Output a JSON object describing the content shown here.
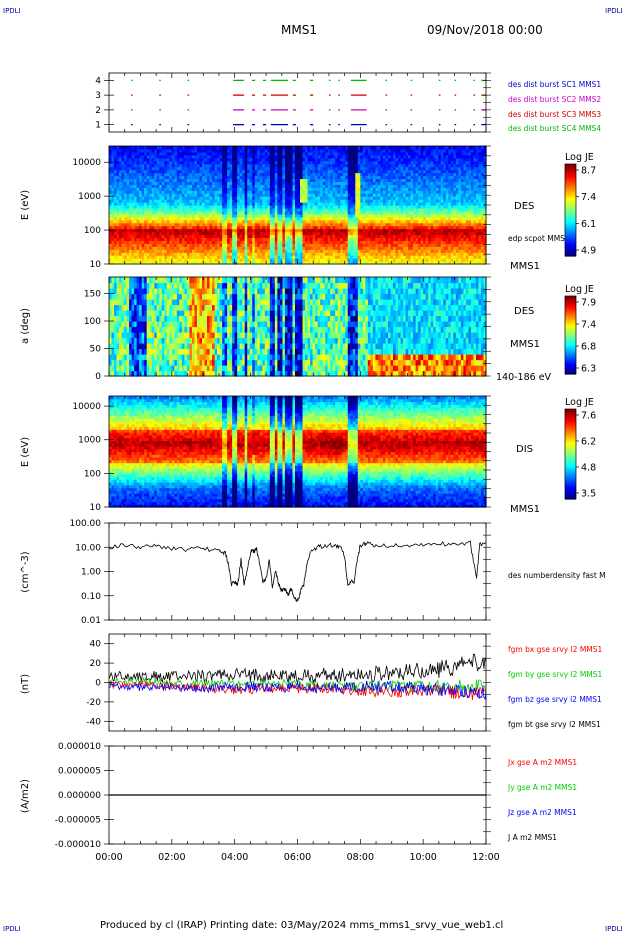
{
  "header": {
    "corner_left_top": "IPDLI",
    "corner_right_top": "IPDLI",
    "corner_left_bottom": "IPDLI",
    "corner_right_bottom": "IPDLI",
    "title": "MMS1",
    "date": "09/Nov/2018 00:00",
    "footer": "Produced by cl (IRAP)   Printing date: 03/May/2024   mms_mms1_srvy_vue_web1.cl"
  },
  "colors": {
    "sc1": "#0000cc",
    "sc2": "#cc00cc",
    "sc3": "#cc0000",
    "sc4": "#00bb00",
    "bx": "#ff0000",
    "by": "#00cc00",
    "bz": "#0000ff",
    "bt": "#000000"
  },
  "chart_data": [
    {
      "id": "burst",
      "type": "scatter",
      "x_ticks": [
        "00:00",
        "02:00",
        "04:00",
        "06:00",
        "08:00",
        "10:00",
        "12:00"
      ],
      "y_ticks": [
        "1",
        "2",
        "3",
        "4"
      ],
      "ylim": [
        0.5,
        4.5
      ],
      "legend": [
        "des dist burst SC1 MMS1",
        "des dist burst SC2 MMS2",
        "des dist burst SC3 MMS3",
        "des dist burst SC4 MMS4"
      ],
      "series": [
        {
          "level": 1,
          "color": "sc1",
          "segments": [
            [
              0.7,
              0.75
            ],
            [
              1.6,
              1.65
            ],
            [
              2.5,
              2.55
            ],
            [
              3.95,
              4.3
            ],
            [
              4.55,
              4.65
            ],
            [
              4.9,
              5.0
            ],
            [
              5.15,
              5.7
            ],
            [
              5.85,
              5.95
            ],
            [
              6.4,
              6.5
            ],
            [
              7.0,
              7.05
            ],
            [
              7.3,
              7.35
            ],
            [
              7.7,
              8.2
            ],
            [
              8.8,
              8.85
            ],
            [
              9.6,
              9.65
            ],
            [
              10.5,
              10.55
            ],
            [
              11.0,
              11.05
            ],
            [
              11.6,
              11.65
            ],
            [
              11.85,
              12.0
            ]
          ]
        },
        {
          "level": 2,
          "color": "sc2",
          "segments": [
            [
              0.7,
              0.75
            ],
            [
              1.6,
              1.65
            ],
            [
              2.5,
              2.55
            ],
            [
              3.95,
              4.3
            ],
            [
              4.55,
              4.65
            ],
            [
              4.9,
              5.0
            ],
            [
              5.15,
              5.7
            ],
            [
              5.85,
              5.95
            ],
            [
              6.4,
              6.5
            ],
            [
              7.0,
              7.05
            ],
            [
              7.3,
              7.35
            ],
            [
              7.7,
              8.2
            ],
            [
              8.8,
              8.85
            ],
            [
              9.6,
              9.65
            ],
            [
              10.5,
              10.55
            ],
            [
              11.0,
              11.05
            ],
            [
              11.6,
              11.65
            ],
            [
              11.85,
              12.0
            ]
          ]
        },
        {
          "level": 3,
          "color": "sc3",
          "segments": [
            [
              0.7,
              0.75
            ],
            [
              1.6,
              1.65
            ],
            [
              2.5,
              2.55
            ],
            [
              3.95,
              4.3
            ],
            [
              4.55,
              4.65
            ],
            [
              4.9,
              5.0
            ],
            [
              5.15,
              5.7
            ],
            [
              5.85,
              5.95
            ],
            [
              6.4,
              6.5
            ],
            [
              7.0,
              7.05
            ],
            [
              7.3,
              7.35
            ],
            [
              7.7,
              8.2
            ],
            [
              8.8,
              8.85
            ],
            [
              9.6,
              9.65
            ],
            [
              10.5,
              10.55
            ],
            [
              11.0,
              11.05
            ],
            [
              11.6,
              11.65
            ],
            [
              11.85,
              12.0
            ]
          ]
        },
        {
          "level": 4,
          "color": "sc4",
          "segments": [
            [
              0.7,
              0.75
            ],
            [
              1.6,
              1.65
            ],
            [
              2.5,
              2.55
            ],
            [
              3.95,
              4.3
            ],
            [
              4.55,
              4.65
            ],
            [
              4.9,
              5.0
            ],
            [
              5.15,
              5.7
            ],
            [
              5.85,
              5.95
            ],
            [
              6.4,
              6.5
            ],
            [
              7.0,
              7.05
            ],
            [
              7.3,
              7.35
            ],
            [
              7.7,
              8.2
            ],
            [
              8.8,
              8.85
            ],
            [
              9.6,
              9.65
            ],
            [
              10.5,
              10.55
            ],
            [
              11.0,
              11.05
            ],
            [
              11.6,
              11.65
            ],
            [
              11.85,
              12.0
            ]
          ]
        }
      ]
    },
    {
      "id": "des_energy",
      "type": "heatmap",
      "ylabel": "E (eV)",
      "yscale": "log",
      "ylim": [
        10,
        30000
      ],
      "y_ticks": [
        "10",
        "100",
        "1000",
        "10000"
      ],
      "x_ticks": [
        "00:00",
        "02:00",
        "04:00",
        "06:00",
        "08:00",
        "10:00",
        "12:00"
      ],
      "colorbar": {
        "title": "Log JE",
        "ticks": [
          "8.7",
          "7.4",
          "6.1",
          "4.9"
        ],
        "range": [
          4.9,
          8.7
        ]
      },
      "labels": [
        "DES",
        "edp scpot MMS1",
        "MMS1"
      ]
    },
    {
      "id": "des_pitch",
      "type": "heatmap",
      "ylabel": "a (deg)",
      "ylim": [
        0,
        180
      ],
      "y_ticks": [
        "0",
        "50",
        "100",
        "150"
      ],
      "x_ticks": [
        "00:00",
        "02:00",
        "04:00",
        "06:00",
        "08:00",
        "10:00",
        "12:00"
      ],
      "colorbar": {
        "title": "Log JE",
        "ticks": [
          "7.9",
          "7.4",
          "6.8",
          "6.3"
        ],
        "range": [
          6.3,
          7.9
        ]
      },
      "labels": [
        "DES",
        "MMS1",
        "140-186 eV"
      ]
    },
    {
      "id": "dis_energy",
      "type": "heatmap",
      "ylabel": "E (eV)",
      "yscale": "log",
      "ylim": [
        10,
        20000
      ],
      "y_ticks": [
        "10",
        "100",
        "1000",
        "10000"
      ],
      "x_ticks": [
        "00:00",
        "02:00",
        "04:00",
        "06:00",
        "08:00",
        "10:00",
        "12:00"
      ],
      "colorbar": {
        "title": "Log JE",
        "ticks": [
          "7.6",
          "6.2",
          "4.8",
          "3.5"
        ],
        "range": [
          3.5,
          7.6
        ]
      },
      "labels": [
        "DIS",
        "MMS1"
      ]
    },
    {
      "id": "density",
      "type": "line",
      "ylabel": "(cm^-3)",
      "yscale": "log",
      "ylim": [
        0.01,
        100
      ],
      "y_ticks": [
        "0.01",
        "0.10",
        "1.00",
        "10.00",
        "100.00"
      ],
      "x_ticks": [
        "00:00",
        "02:00",
        "04:00",
        "06:00",
        "08:00",
        "10:00",
        "12:00"
      ],
      "legend": [
        "des numberdensity fast M"
      ],
      "x": [
        0.0,
        0.5,
        1.0,
        1.5,
        2.0,
        2.5,
        3.0,
        3.5,
        3.7,
        3.8,
        3.9,
        4.0,
        4.1,
        4.2,
        4.3,
        4.4,
        4.5,
        4.6,
        4.7,
        4.8,
        4.9,
        5.0,
        5.1,
        5.2,
        5.3,
        5.4,
        5.5,
        5.6,
        5.7,
        5.8,
        5.9,
        6.0,
        6.1,
        6.2,
        6.3,
        6.4,
        6.6,
        6.8,
        7.0,
        7.2,
        7.4,
        7.5,
        7.6,
        7.7,
        7.8,
        7.9,
        8.0,
        8.2,
        8.5,
        9.0,
        9.5,
        10.0,
        10.5,
        11.0,
        11.5,
        11.7,
        11.8,
        12.0
      ],
      "y": [
        10,
        12,
        10,
        11,
        9,
        8,
        9,
        7,
        6,
        2,
        0.3,
        0.4,
        0.3,
        3,
        0.3,
        1,
        6,
        7,
        8,
        2,
        0.4,
        0.5,
        3,
        0.2,
        1,
        0.3,
        0.15,
        0.2,
        0.1,
        0.2,
        0.08,
        0.06,
        0.15,
        0.3,
        2,
        6,
        10,
        11,
        12,
        12,
        9,
        4,
        0.3,
        0.4,
        0.3,
        3,
        12,
        14,
        12,
        12,
        12,
        13,
        14,
        14,
        15,
        0.5,
        13,
        15
      ]
    },
    {
      "id": "bfield",
      "type": "line",
      "ylabel": "(nT)",
      "ylim": [
        -50,
        50
      ],
      "y_ticks": [
        "-40",
        "-20",
        "0",
        "20",
        "40"
      ],
      "x_ticks": [
        "00:00",
        "02:00",
        "04:00",
        "06:00",
        "08:00",
        "10:00",
        "12:00"
      ],
      "legend": [
        "fgm bx gse srvy l2 MMS1",
        "fgm by gse srvy l2 MMS1",
        "fgm bz gse srvy l2 MMS1",
        "fgm bt gse srvy l2 MMS1"
      ],
      "x": [
        0,
        1,
        2,
        3,
        4,
        5,
        6,
        7,
        8,
        9,
        10,
        11,
        12
      ],
      "series": [
        {
          "name": "bt",
          "color": "bt",
          "values": [
            6,
            7,
            6,
            7,
            8,
            7,
            6,
            8,
            9,
            10,
            12,
            16,
            22
          ]
        },
        {
          "name": "by",
          "color": "by",
          "values": [
            0,
            1,
            0,
            0,
            -2,
            0,
            -3,
            -4,
            -5,
            -4,
            -5,
            -4,
            -3
          ]
        },
        {
          "name": "bx",
          "color": "bx",
          "values": [
            -3,
            -2,
            -4,
            -5,
            -8,
            -6,
            -7,
            -6,
            -9,
            -10,
            -8,
            -10,
            -12
          ]
        },
        {
          "name": "bz",
          "color": "bz",
          "values": [
            -4,
            -5,
            -5,
            -6,
            -4,
            -5,
            -6,
            -6,
            -4,
            -5,
            -7,
            -8,
            -10
          ]
        }
      ]
    },
    {
      "id": "current",
      "type": "line",
      "ylabel": "(A/m2)",
      "ylim": [
        -1e-05,
        1e-05
      ],
      "y_ticks": [
        "-0.000010",
        "-0.000005",
        "0.000000",
        "0.000005",
        "0.000010"
      ],
      "x_ticks": [
        "00:00",
        "02:00",
        "04:00",
        "06:00",
        "08:00",
        "10:00",
        "12:00"
      ],
      "legend": [
        "Jx gse A m2 MMS1",
        "Jy gse A m2 MMS1",
        "Jz gse A m2 MMS1",
        "J A m2 MMS1"
      ],
      "x": [
        0,
        12
      ],
      "series": [
        {
          "name": "J",
          "color": "bt",
          "values": [
            0,
            0
          ]
        }
      ]
    }
  ]
}
